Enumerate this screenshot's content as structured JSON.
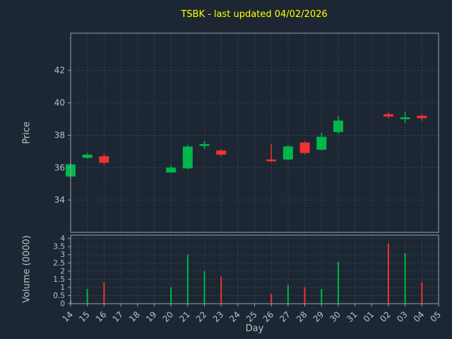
{
  "colors": {
    "background": "#1c2733",
    "up": "#00b84a",
    "down": "#f23131",
    "title": "#ffff00",
    "axis_text": "#b9c0cb",
    "grid": "#4d5a70",
    "spine": "#98a2b0"
  },
  "chart_data": {
    "type": "candlestick",
    "title": "TSBK - last updated 04/02/2026",
    "xlabel": "Day",
    "ylabel_price": "Price",
    "ylabel_volume": "Volume (0000)",
    "x_ticklabels": [
      "14",
      "15",
      "16",
      "17",
      "18",
      "19",
      "20",
      "21",
      "22",
      "23",
      "24",
      "25",
      "26",
      "27",
      "28",
      "29",
      "30",
      "31",
      "01",
      "02",
      "03",
      "04",
      "05"
    ],
    "price_ylim": [
      32.0,
      44.3
    ],
    "price_yticks": [
      34,
      36,
      38,
      40,
      42
    ],
    "volume_ylim": [
      0,
      4.2
    ],
    "volume_yticks": [
      0,
      0.5,
      1,
      1.5,
      2,
      2.5,
      3,
      3.5,
      4
    ],
    "grid": "dotted",
    "legend": null,
    "candles": [
      {
        "day": "14",
        "x_index": 0,
        "open": 35.45,
        "high": 36.3,
        "low": 35.35,
        "close": 36.2,
        "volume": 0.2
      },
      {
        "day": "15",
        "x_index": 1,
        "open": 36.6,
        "high": 36.9,
        "low": 36.55,
        "close": 36.8,
        "volume": 0.9
      },
      {
        "day": "16",
        "x_index": 2,
        "open": 36.7,
        "high": 36.85,
        "low": 36.2,
        "close": 36.3,
        "volume": 1.3
      },
      {
        "day": "20",
        "x_index": 6,
        "open": 35.7,
        "high": 36.15,
        "low": 35.65,
        "close": 36.0,
        "volume": 1.0
      },
      {
        "day": "21",
        "x_index": 7,
        "open": 35.95,
        "high": 37.4,
        "low": 35.9,
        "close": 37.3,
        "volume": 3.0
      },
      {
        "day": "22",
        "x_index": 8,
        "open": 37.4,
        "high": 37.65,
        "low": 37.15,
        "close": 37.45,
        "volume": 2.0
      },
      {
        "day": "23",
        "x_index": 9,
        "open": 37.05,
        "high": 37.15,
        "low": 36.7,
        "close": 36.8,
        "volume": 1.65
      },
      {
        "day": "26",
        "x_index": 12,
        "open": 36.5,
        "high": 37.45,
        "low": 36.35,
        "close": 36.45,
        "volume": 0.6
      },
      {
        "day": "27",
        "x_index": 13,
        "open": 36.5,
        "high": 37.4,
        "low": 36.45,
        "close": 37.3,
        "volume": 1.15
      },
      {
        "day": "28",
        "x_index": 14,
        "open": 37.55,
        "high": 37.6,
        "low": 36.85,
        "close": 36.9,
        "volume": 1.0
      },
      {
        "day": "29",
        "x_index": 15,
        "open": 37.1,
        "high": 38.15,
        "low": 37.05,
        "close": 37.9,
        "volume": 0.9
      },
      {
        "day": "30",
        "x_index": 16,
        "open": 38.2,
        "high": 39.2,
        "low": 38.1,
        "close": 38.9,
        "volume": 2.55
      },
      {
        "day": "02",
        "x_index": 19,
        "open": 39.3,
        "high": 39.4,
        "low": 39.05,
        "close": 39.15,
        "volume": 3.7
      },
      {
        "day": "03",
        "x_index": 20,
        "open": 39.0,
        "high": 39.45,
        "low": 38.75,
        "close": 39.1,
        "volume": 3.1
      },
      {
        "day": "04",
        "x_index": 21,
        "open": 39.2,
        "high": 39.3,
        "low": 38.9,
        "close": 39.05,
        "volume": 1.3
      }
    ]
  }
}
